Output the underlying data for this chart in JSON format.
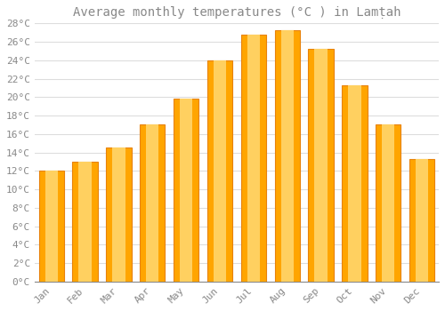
{
  "title": "Average monthly temperatures (°C ) in Lamṭah",
  "months": [
    "Jan",
    "Feb",
    "Mar",
    "Apr",
    "May",
    "Jun",
    "Jul",
    "Aug",
    "Sep",
    "Oct",
    "Nov",
    "Dec"
  ],
  "values": [
    12,
    13,
    14.5,
    17,
    19.8,
    24,
    26.8,
    27.3,
    25.2,
    21.3,
    17,
    13.3
  ],
  "bar_color": "#FFA500",
  "bar_edge_color": "#E8820A",
  "background_color": "#FFFFFF",
  "plot_bg_color": "#FFFFFF",
  "grid_color": "#DDDDDD",
  "text_color": "#888888",
  "ytick_step": 2,
  "ymin": 0,
  "ymax": 28,
  "title_fontsize": 10,
  "tick_fontsize": 8
}
